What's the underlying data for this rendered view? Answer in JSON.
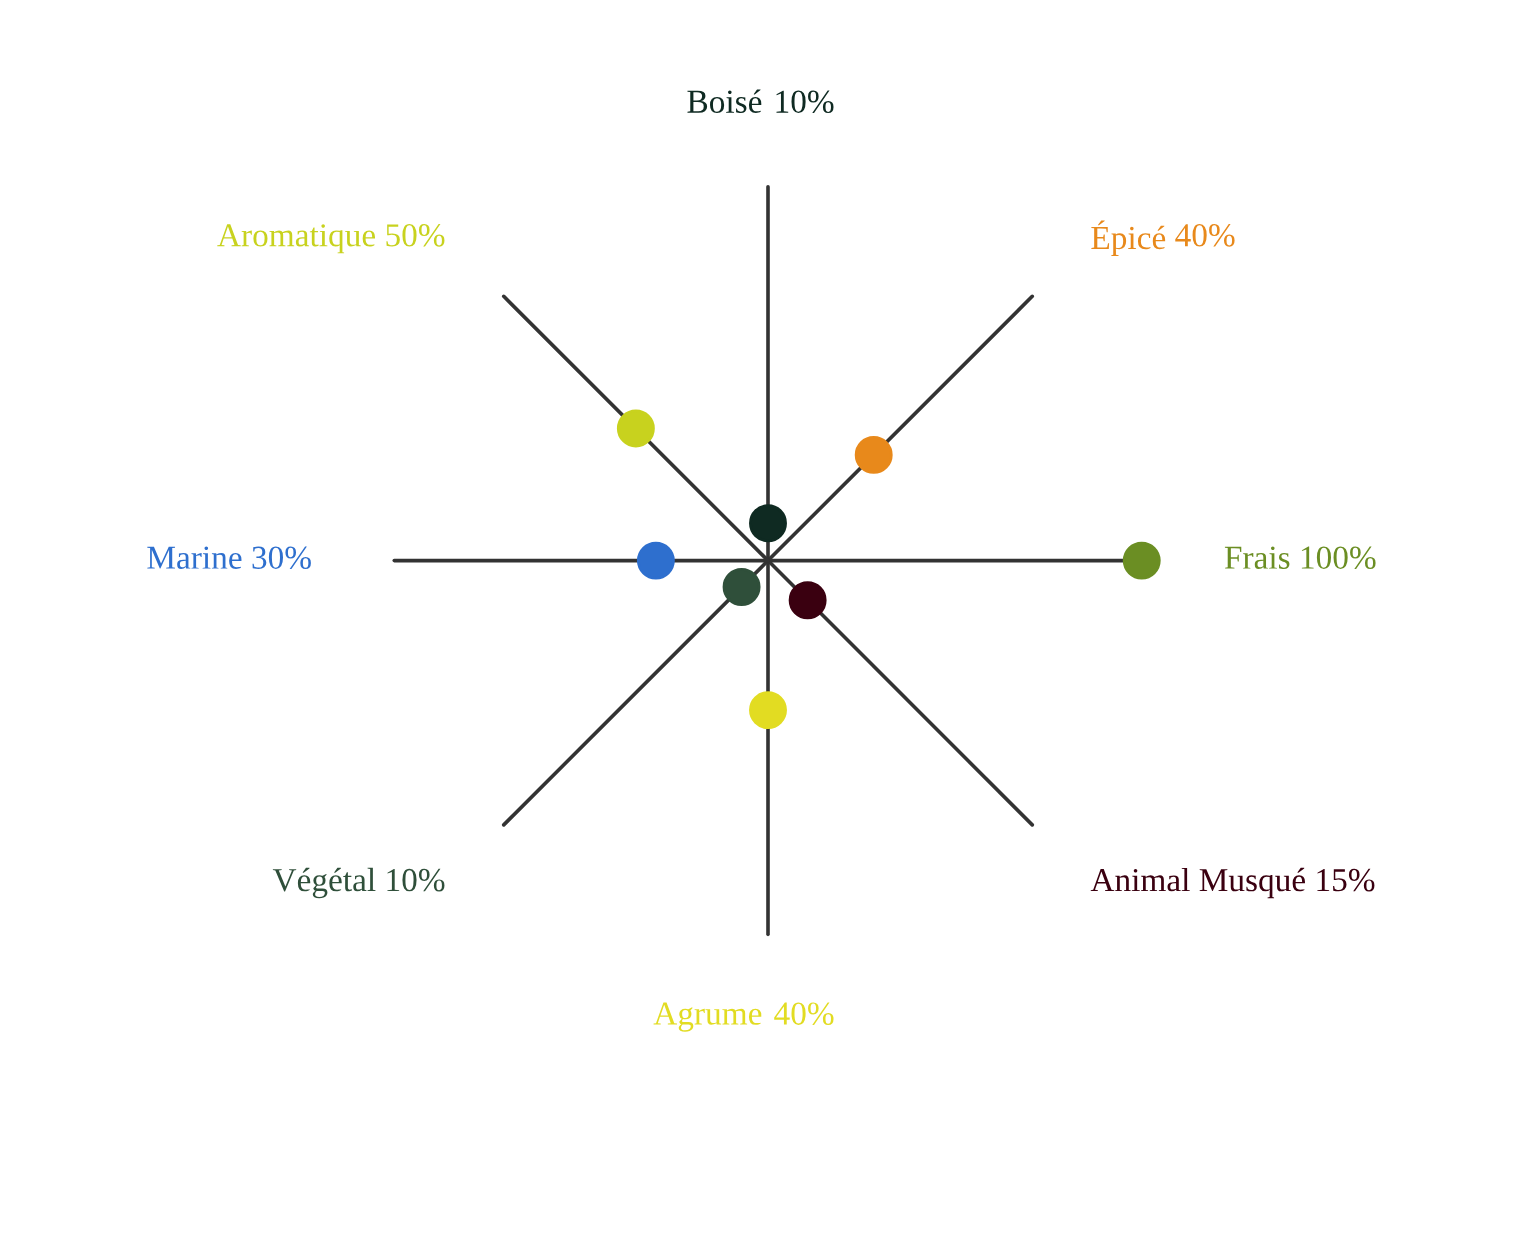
{
  "chart_data": {
    "type": "other",
    "categories": [
      "Boisé",
      "Épicé",
      "Frais",
      "Animal Musqué",
      "Agrume",
      "Végétal",
      "Marine",
      "Aromatique"
    ],
    "values": [
      10,
      40,
      100,
      15,
      40,
      10,
      30,
      50
    ],
    "value_labels": [
      "10%",
      "40%",
      "100%",
      "15%",
      "40%",
      "10%",
      "30%",
      "50%"
    ],
    "colors": [
      "#0f2a22",
      "#e8891b",
      "#6b8e23",
      "#3a0010",
      "#e2dc22",
      "#2f4f3a",
      "#2e6fce",
      "#c8d21e"
    ]
  }
}
